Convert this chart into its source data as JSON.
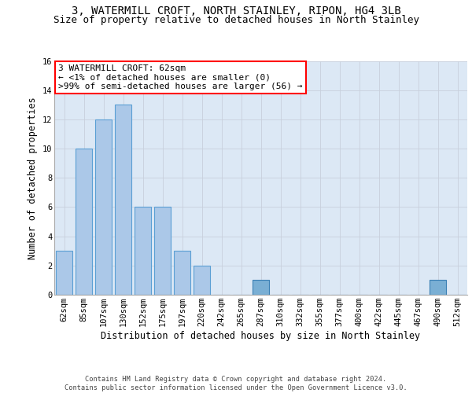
{
  "title_line1": "3, WATERMILL CROFT, NORTH STAINLEY, RIPON, HG4 3LB",
  "title_line2": "Size of property relative to detached houses in North Stainley",
  "xlabel": "Distribution of detached houses by size in North Stainley",
  "ylabel": "Number of detached properties",
  "footer_line1": "Contains HM Land Registry data © Crown copyright and database right 2024.",
  "footer_line2": "Contains public sector information licensed under the Open Government Licence v3.0.",
  "annotation_line1": "3 WATERMILL CROFT: 62sqm",
  "annotation_line2": "← <1% of detached houses are smaller (0)",
  "annotation_line3": ">99% of semi-detached houses are larger (56) →",
  "categories": [
    "62sqm",
    "85sqm",
    "107sqm",
    "130sqm",
    "152sqm",
    "175sqm",
    "197sqm",
    "220sqm",
    "242sqm",
    "265sqm",
    "287sqm",
    "310sqm",
    "332sqm",
    "355sqm",
    "377sqm",
    "400sqm",
    "422sqm",
    "445sqm",
    "467sqm",
    "490sqm",
    "512sqm"
  ],
  "values": [
    3,
    10,
    12,
    13,
    6,
    6,
    3,
    2,
    0,
    0,
    1,
    0,
    0,
    0,
    0,
    0,
    0,
    0,
    0,
    1,
    0
  ],
  "bar_color": "#abc8e8",
  "bar_edge_color": "#5a9fd4",
  "highlight_indices": [
    10,
    19
  ],
  "highlight_color": "#7aafd4",
  "highlight_edge_color": "#3a7fb4",
  "ylim": [
    0,
    16
  ],
  "yticks": [
    0,
    2,
    4,
    6,
    8,
    10,
    12,
    14,
    16
  ],
  "grid_color": "#c8d0dc",
  "bg_color": "#dce8f5",
  "title_fontsize": 10,
  "subtitle_fontsize": 9,
  "axis_label_fontsize": 8.5,
  "tick_fontsize": 7.5,
  "annotation_fontsize": 8
}
